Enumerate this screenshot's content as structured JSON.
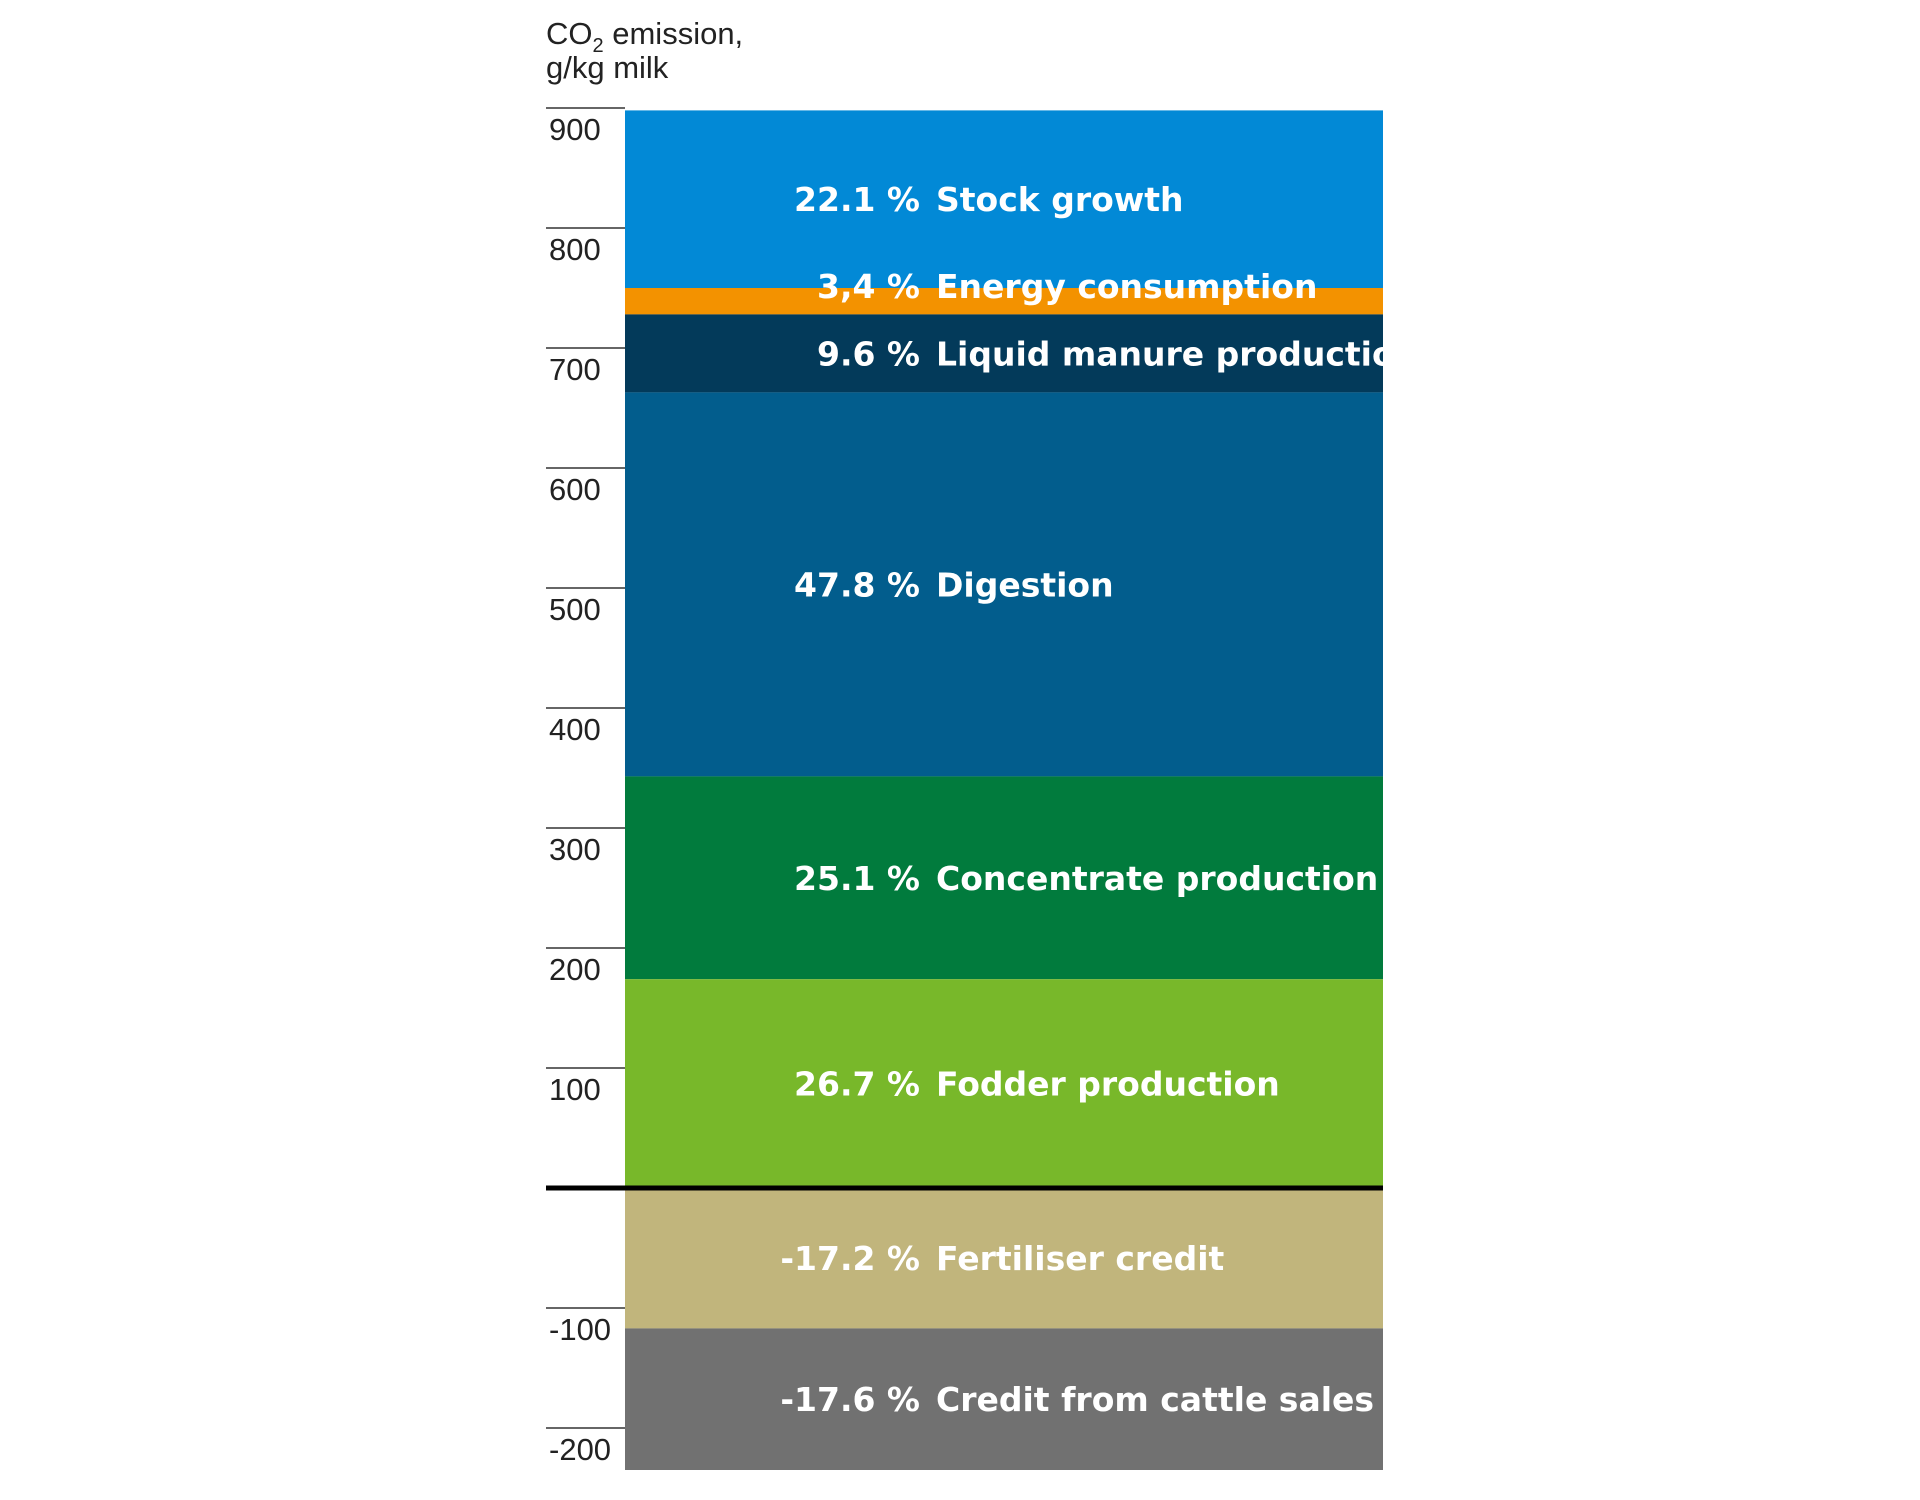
{
  "chart_data": {
    "type": "bar",
    "subtype": "stacked-single-column",
    "ylabel_prefix": "CO",
    "ylabel_sub": "2",
    "ylabel_suffix": " emission,",
    "ylabel_line2": "g/kg milk",
    "ylim": [
      -235,
      900
    ],
    "yticks": [
      900,
      800,
      700,
      600,
      500,
      400,
      300,
      200,
      100,
      -100,
      -200
    ],
    "segments": [
      {
        "pct": "22.1 %",
        "name": "Stock growth",
        "from": 750,
        "to": 898,
        "color": "#0289d6"
      },
      {
        "pct": "3,4 %",
        "name": "Energy consumption",
        "from": 728,
        "to": 750,
        "color": "#f39200"
      },
      {
        "pct": "9.6 %",
        "name": "Liquid manure production",
        "from": 663,
        "to": 728,
        "color": "#033a5a"
      },
      {
        "pct": "47.8 %",
        "name": "Digestion",
        "from": 343,
        "to": 663,
        "color": "#025d8d"
      },
      {
        "pct": "25.1 %",
        "name": "Concentrate production",
        "from": 174,
        "to": 343,
        "color": "#017b3d"
      },
      {
        "pct": "26.7 %",
        "name": "Fodder production",
        "from": 0,
        "to": 174,
        "color": "#78b82a"
      },
      {
        "pct": "-17.2 %",
        "name": "Fertiliser credit",
        "from": -117,
        "to": 0,
        "color": "#c1b57c"
      },
      {
        "pct": "-17.6 %",
        "name": "Credit from cattle sales",
        "from": -235,
        "to": -117,
        "color": "#717171"
      }
    ]
  }
}
